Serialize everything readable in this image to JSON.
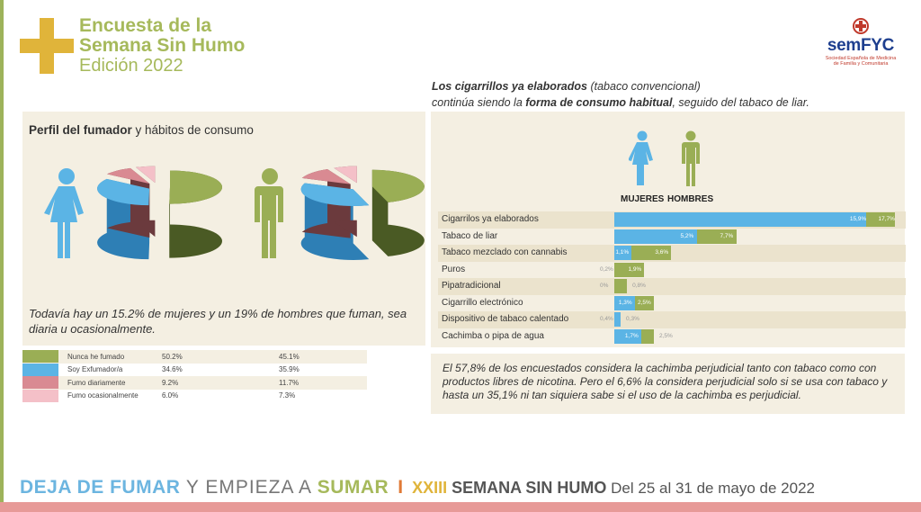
{
  "header": {
    "title_line1": "Encuesta de la",
    "title_line2": "Semana Sin Humo",
    "title_line3": "Edición 2022",
    "logo_name": "semFYC",
    "logo_sub1": "Sociedad Española de Medicina",
    "logo_sub2": "de Familia y Comunitaria"
  },
  "intro": {
    "bold1": "Los cigarrillos ya elaborados",
    "text1": " (tabaco convencional)",
    "text2": "continúa siendo la ",
    "bold2": "forma de consumo habitual",
    "text3": ", seguido del tabaco de liar."
  },
  "perfil": {
    "title_bold": "Perfil del fumador",
    "title_rest": " y hábitos de consumo",
    "text": "Todavía hay un 15.2% de mujeres y un 19% de hombres que fuman, sea diaria u ocasionalmente."
  },
  "gender_labels": {
    "women": "MUJERES",
    "men": "HOMBRES"
  },
  "cachimba_text": "El 57,8% de los encuestados considera la cachimba perjudicial tanto con tabaco como con productos libres de nicotina. Pero el 6,6% la considera perjudicial solo si se usa con tabaco y hasta un 35,1% ni tan siquiera sabe si el uso de la cachimba es perjudicial.",
  "footer": {
    "part1": "DEJA DE FUMAR",
    "part2": " Y EMPIEZA A ",
    "part3": "SUMAR",
    "sep": "I",
    "part4": "XXIII",
    "part5": " SEMANA SIN HUMO",
    "part6": " Del 25 al 31 de mayo de 2022"
  },
  "colors": {
    "olive": "#9aae55",
    "blue": "#5bb4e5",
    "red": "#d98a92",
    "pink": "#f4c0c8",
    "dark_olive": "#4a5a24",
    "dark_red": "#6b3a3d"
  },
  "chart_data": [
    {
      "type": "pie",
      "categories": [
        "Nunca he fumado",
        "Soy Exfumador/a",
        "Fumo diariamente",
        "Fumo ocasionalmente"
      ],
      "series": [
        {
          "name": "Mujeres",
          "values": [
            50.2,
            34.6,
            9.2,
            6.0
          ],
          "labels": [
            "50.2%",
            "34.6%",
            "9.2%",
            "6.0%"
          ]
        },
        {
          "name": "Hombres",
          "values": [
            45.1,
            35.9,
            11.7,
            7.3
          ],
          "labels": [
            "45.1%",
            "35.9%",
            "11.7%",
            "7.3%"
          ]
        }
      ]
    },
    {
      "type": "bar",
      "categories": [
        "Cigarrilos ya elaborados",
        "Tabaco de liar",
        "Tabaco mezclado con cannabis",
        "Puros",
        "Pipatradicional",
        "Cigarrillo electrónico",
        "Dispositivo de tabaco calentado",
        "Cachimba o pipa de agua"
      ],
      "series": [
        {
          "name": "MUJERES",
          "values": [
            15.9,
            5.2,
            1.1,
            0.2,
            0,
            1.3,
            0.4,
            1.7
          ],
          "labels": [
            "15,9%",
            "5,2%",
            "1,1%",
            "0,2%",
            "0%",
            "1,3%",
            "0,4%",
            "1,7%"
          ]
        },
        {
          "name": "HOMBRES",
          "values": [
            17.7,
            7.7,
            3.6,
            1.9,
            0.8,
            2.5,
            0.3,
            2.5
          ],
          "labels": [
            "17,7%",
            "7,7%",
            "3,6%",
            "1,9%",
            "0,8%",
            "2,5%",
            "0,3%",
            "2,5%"
          ]
        }
      ]
    }
  ]
}
